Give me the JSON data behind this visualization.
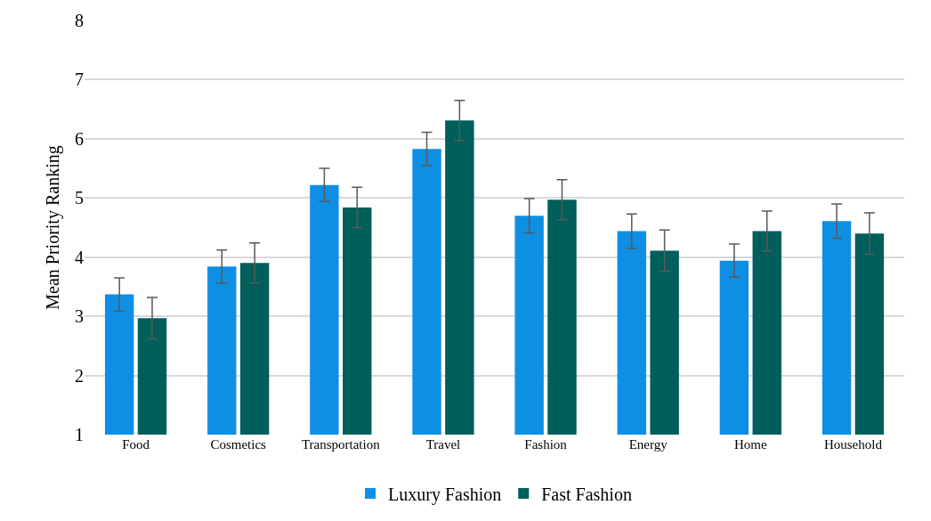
{
  "chart_data": {
    "type": "bar",
    "ylabel": "Mean Priority Ranking",
    "categories": [
      "Food",
      "Cosmetics",
      "Transportation",
      "Travel",
      "Fashion",
      "Energy",
      "Home",
      "Household"
    ],
    "series": [
      {
        "name": "Luxury Fashion",
        "color": "#0f8fe3",
        "values": [
          3.37,
          3.84,
          5.22,
          5.83,
          4.7,
          4.44,
          3.94,
          4.61
        ],
        "errors": [
          0.28,
          0.28,
          0.28,
          0.28,
          0.29,
          0.29,
          0.28,
          0.29
        ]
      },
      {
        "name": "Fast Fashion",
        "color": "#005e5b",
        "values": [
          2.97,
          3.9,
          4.84,
          6.31,
          4.97,
          4.11,
          4.44,
          4.4
        ],
        "errors": [
          0.35,
          0.34,
          0.34,
          0.34,
          0.34,
          0.35,
          0.34,
          0.35
        ]
      }
    ],
    "ylim": [
      1,
      8
    ],
    "yticks": [
      1,
      2,
      3,
      4,
      5,
      6,
      7,
      8
    ],
    "grid": "y",
    "legend": "bottom"
  }
}
